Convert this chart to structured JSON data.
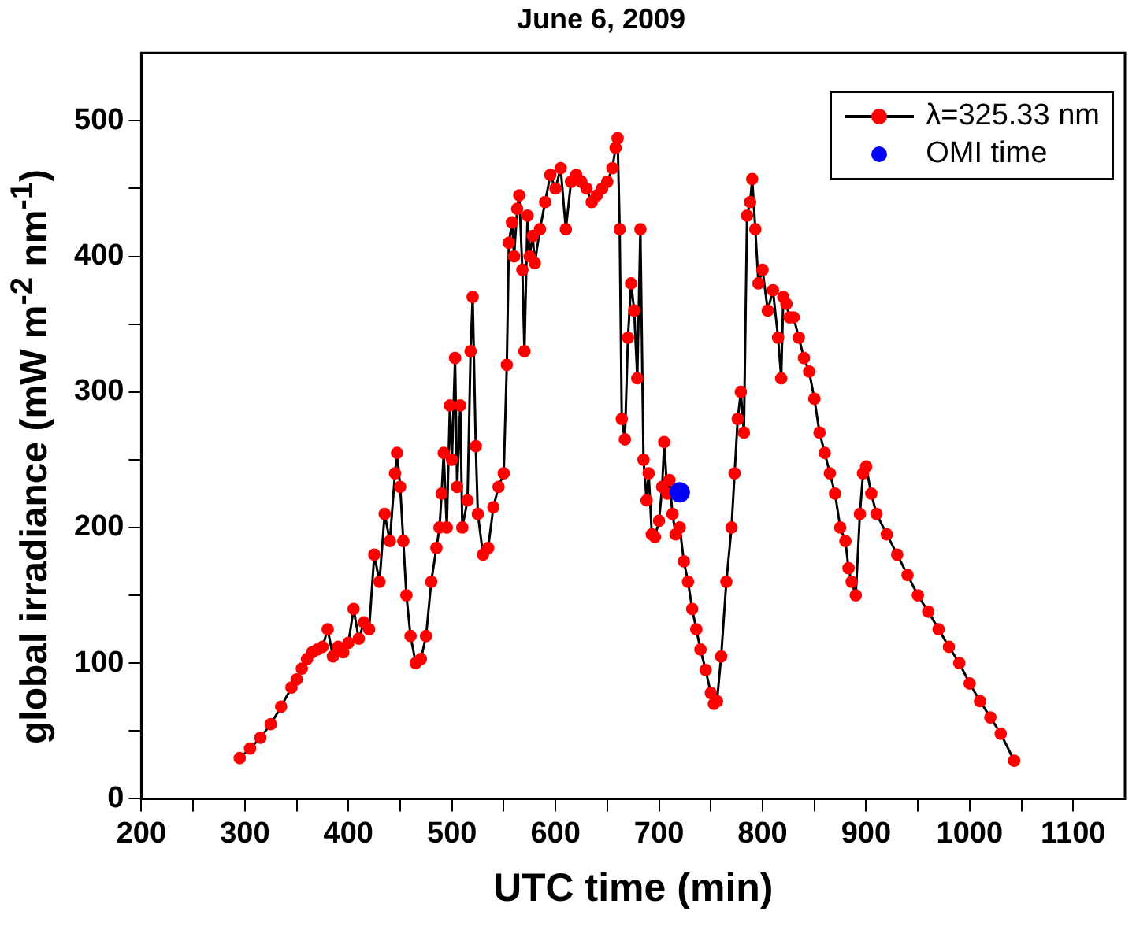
{
  "chart_data": {
    "type": "line",
    "title": "June 6, 2009",
    "xlabel": "UTC time (min)",
    "ylabel": "global irradiance (mW m$^{-2}$ nm$^{-1}$)",
    "xlim": [
      200,
      1150
    ],
    "ylim": [
      0,
      550
    ],
    "xticks": [
      200,
      {
        "value": 250,
        "label": null
      },
      300,
      {
        "value": 350,
        "label": null
      },
      400,
      {
        "value": 450,
        "label": null
      },
      500,
      {
        "value": 550,
        "label": null
      },
      600,
      {
        "value": 650,
        "label": null
      },
      700,
      {
        "value": 750,
        "label": null
      },
      800,
      {
        "value": 850,
        "label": null
      },
      900,
      {
        "value": 950,
        "label": null
      },
      1000,
      {
        "value": 1050,
        "label": null
      },
      1100
    ],
    "yticks": [
      0,
      {
        "value": 50,
        "label": null
      },
      100,
      {
        "value": 150,
        "label": null
      },
      200,
      {
        "value": 250,
        "label": null
      },
      300,
      {
        "value": 350,
        "label": null
      },
      400,
      {
        "value": 450,
        "label": null
      },
      500
    ],
    "grid": false,
    "legend": "top right",
    "marker": "circle",
    "series": [
      {
        "name": "λ=325.33 nm",
        "color": "#ff0000",
        "x": [
          295,
          305,
          315,
          325,
          335,
          345,
          350,
          355,
          360,
          365,
          370,
          375,
          380,
          385,
          390,
          395,
          400,
          405,
          410,
          415,
          420,
          425,
          430,
          435,
          440,
          445,
          447,
          450,
          453,
          456,
          460,
          465,
          470,
          475,
          480,
          485,
          488,
          490,
          492,
          495,
          498,
          500,
          503,
          505,
          508,
          510,
          515,
          518,
          520,
          523,
          525,
          530,
          535,
          540,
          545,
          550,
          553,
          555,
          558,
          560,
          563,
          565,
          568,
          570,
          573,
          575,
          578,
          580,
          585,
          590,
          595,
          600,
          605,
          610,
          615,
          620,
          625,
          630,
          635,
          640,
          645,
          650,
          655,
          658,
          660,
          662,
          664,
          667,
          670,
          673,
          676,
          679,
          682,
          685,
          688,
          690,
          693,
          696,
          700,
          703,
          705,
          708,
          710,
          713,
          716,
          720,
          724,
          728,
          732,
          736,
          740,
          745,
          750,
          753,
          756,
          760,
          765,
          770,
          773,
          776,
          779,
          782,
          785,
          788,
          790,
          793,
          796,
          800,
          805,
          810,
          815,
          818,
          820,
          823,
          826,
          830,
          835,
          840,
          845,
          850,
          855,
          860,
          865,
          870,
          875,
          880,
          883,
          886,
          890,
          894,
          897,
          900,
          905,
          910,
          920,
          930,
          940,
          950,
          960,
          970,
          980,
          990,
          1000,
          1010,
          1020,
          1030,
          1043
        ],
        "values": [
          30,
          37,
          45,
          55,
          68,
          82,
          88,
          96,
          103,
          108,
          110,
          112,
          125,
          105,
          112,
          108,
          115,
          140,
          118,
          130,
          125,
          180,
          160,
          210,
          190,
          240,
          255,
          230,
          190,
          150,
          120,
          100,
          103,
          120,
          160,
          185,
          200,
          225,
          255,
          200,
          290,
          250,
          325,
          230,
          290,
          200,
          220,
          330,
          370,
          260,
          210,
          180,
          185,
          215,
          230,
          240,
          320,
          410,
          425,
          400,
          435,
          445,
          390,
          330,
          430,
          400,
          415,
          395,
          420,
          440,
          460,
          450,
          465,
          420,
          455,
          460,
          455,
          450,
          440,
          445,
          450,
          455,
          465,
          480,
          487,
          420,
          280,
          265,
          340,
          380,
          360,
          310,
          420,
          250,
          220,
          240,
          195,
          193,
          205,
          230,
          263,
          225,
          235,
          210,
          195,
          200,
          175,
          160,
          140,
          125,
          110,
          95,
          78,
          70,
          72,
          105,
          160,
          200,
          240,
          280,
          300,
          270,
          430,
          440,
          457,
          420,
          380,
          390,
          360,
          375,
          340,
          310,
          370,
          365,
          355,
          355,
          340,
          325,
          315,
          295,
          270,
          255,
          240,
          225,
          200,
          190,
          170,
          160,
          150,
          210,
          240,
          245,
          225,
          210,
          195,
          180,
          165,
          150,
          138,
          125,
          112,
          100,
          85,
          72,
          60,
          48,
          28
        ]
      },
      {
        "name": "OMI time",
        "type": "scatter",
        "color": "#0000ff",
        "x": [
          720
        ],
        "values": [
          226
        ]
      }
    ]
  }
}
